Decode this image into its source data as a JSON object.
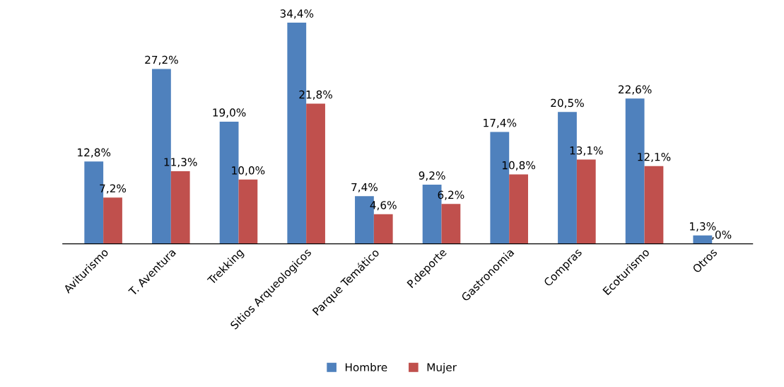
{
  "chart_data": {
    "type": "bar",
    "categories": [
      "Aviturismo",
      "T. Aventura",
      "Trekking",
      "Sitios Arqueologicos",
      "Parque Temático",
      "P.deporte",
      "Gastronomia",
      "Compras",
      "Ecoturismo",
      "Otros"
    ],
    "series": [
      {
        "name": "Hombre",
        "color": "#4f81bd",
        "values": [
          12.8,
          27.2,
          19.0,
          34.4,
          7.4,
          9.2,
          17.4,
          20.5,
          22.6,
          1.3
        ],
        "value_labels": [
          "12,8%",
          "27,2%",
          "19,0%",
          "34,4%",
          "7,4%",
          "9,2%",
          "17,4%",
          "20,5%",
          "22,6%",
          "1,3%"
        ]
      },
      {
        "name": "Mujer",
        "color": "#c0504d",
        "values": [
          7.2,
          11.3,
          10.0,
          21.8,
          4.6,
          6.2,
          10.8,
          13.1,
          12.1,
          0
        ],
        "value_labels": [
          "7,2%",
          "11,3%",
          "10,0%",
          "21,8%",
          "4,6%",
          "6,2%",
          "10,8%",
          "13,1%",
          "12,1%",
          ",0%"
        ]
      }
    ],
    "legend": "bottom",
    "grid": false
  }
}
